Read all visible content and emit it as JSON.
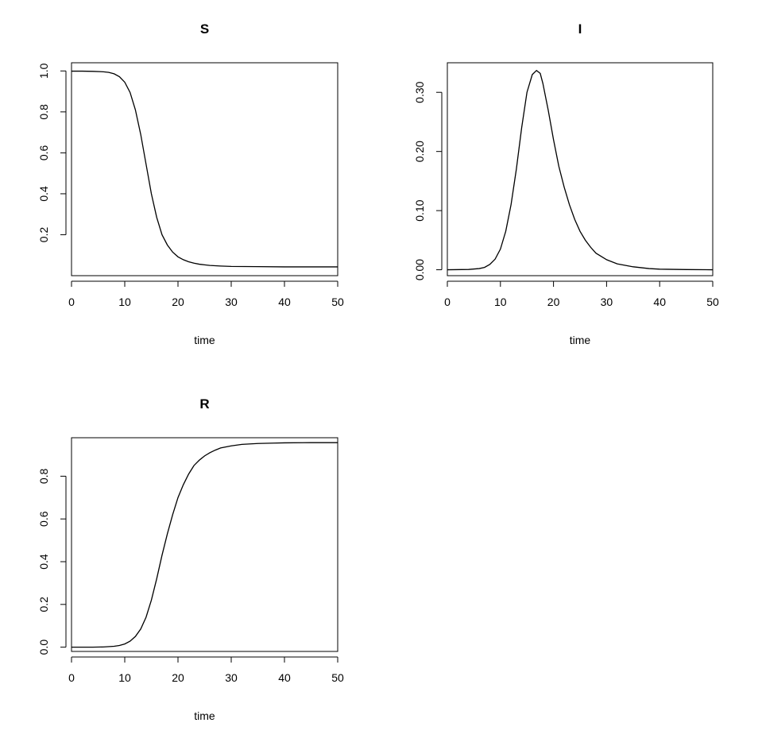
{
  "chart_data": [
    {
      "type": "line",
      "title": "S",
      "xlabel": "time",
      "ylabel": "",
      "xlim": [
        0,
        50
      ],
      "ylim": [
        0.0,
        1.04
      ],
      "xticks": [
        0,
        10,
        20,
        30,
        40,
        50
      ],
      "xtick_labels": [
        "0",
        "10",
        "20",
        "30",
        "40",
        "50"
      ],
      "yticks": [
        0.2,
        0.4,
        0.6,
        0.8,
        1.0
      ],
      "ytick_labels": [
        "0.2",
        "0.4",
        "0.6",
        "0.8",
        "1.0"
      ],
      "grid": false,
      "series": [
        {
          "color": "#000000",
          "x": [
            0,
            2,
            4,
            6,
            7,
            8,
            9,
            10,
            11,
            12,
            13,
            14,
            15,
            16,
            17,
            18,
            19,
            20,
            21,
            22,
            23,
            24,
            25,
            26,
            28,
            30,
            35,
            40,
            45,
            50
          ],
          "y": [
            0.999,
            0.999,
            0.998,
            0.996,
            0.993,
            0.986,
            0.972,
            0.945,
            0.895,
            0.81,
            0.69,
            0.545,
            0.4,
            0.285,
            0.2,
            0.15,
            0.115,
            0.092,
            0.078,
            0.068,
            0.061,
            0.056,
            0.053,
            0.05,
            0.047,
            0.045,
            0.044,
            0.043,
            0.043,
            0.043
          ]
        }
      ]
    },
    {
      "type": "line",
      "title": "I",
      "xlabel": "time",
      "ylabel": "",
      "xlim": [
        0,
        50
      ],
      "ylim": [
        -0.01,
        0.35
      ],
      "xticks": [
        0,
        10,
        20,
        30,
        40,
        50
      ],
      "xtick_labels": [
        "0",
        "10",
        "20",
        "30",
        "40",
        "50"
      ],
      "yticks": [
        0.0,
        0.1,
        0.2,
        0.3
      ],
      "ytick_labels": [
        "0.00",
        "0.10",
        "0.20",
        "0.30"
      ],
      "grid": false,
      "series": [
        {
          "color": "#000000",
          "x": [
            0,
            4,
            6,
            7,
            8,
            9,
            10,
            11,
            12,
            13,
            14,
            15,
            16,
            16.8,
            17.5,
            18,
            19,
            20,
            21,
            22,
            23,
            24,
            25,
            26,
            27,
            28,
            30,
            32,
            35,
            38,
            40,
            45,
            50
          ],
          "y": [
            0.0,
            0.0005,
            0.002,
            0.004,
            0.009,
            0.018,
            0.035,
            0.065,
            0.11,
            0.17,
            0.24,
            0.3,
            0.33,
            0.337,
            0.332,
            0.315,
            0.27,
            0.22,
            0.175,
            0.14,
            0.11,
            0.085,
            0.065,
            0.05,
            0.038,
            0.028,
            0.017,
            0.01,
            0.005,
            0.002,
            0.001,
            0.0003,
            0.0
          ]
        }
      ]
    },
    {
      "type": "line",
      "title": "R",
      "xlabel": "time",
      "ylabel": "",
      "xlim": [
        0,
        50
      ],
      "ylim": [
        -0.02,
        0.98
      ],
      "xticks": [
        0,
        10,
        20,
        30,
        40,
        50
      ],
      "xtick_labels": [
        "0",
        "10",
        "20",
        "30",
        "40",
        "50"
      ],
      "yticks": [
        0.0,
        0.2,
        0.4,
        0.6,
        0.8
      ],
      "ytick_labels": [
        "0.0",
        "0.2",
        "0.4",
        "0.6",
        "0.8"
      ],
      "grid": false,
      "series": [
        {
          "color": "#000000",
          "x": [
            0,
            4,
            6,
            8,
            9,
            10,
            11,
            12,
            13,
            14,
            15,
            16,
            17,
            18,
            19,
            20,
            21,
            22,
            23,
            24,
            25,
            26,
            27,
            28,
            30,
            32,
            35,
            38,
            40,
            45,
            50
          ],
          "y": [
            0.0,
            0.0,
            0.001,
            0.004,
            0.008,
            0.015,
            0.028,
            0.05,
            0.085,
            0.14,
            0.22,
            0.32,
            0.43,
            0.53,
            0.62,
            0.7,
            0.76,
            0.81,
            0.85,
            0.875,
            0.895,
            0.91,
            0.922,
            0.932,
            0.942,
            0.949,
            0.953,
            0.955,
            0.956,
            0.957,
            0.957
          ]
        }
      ]
    }
  ]
}
